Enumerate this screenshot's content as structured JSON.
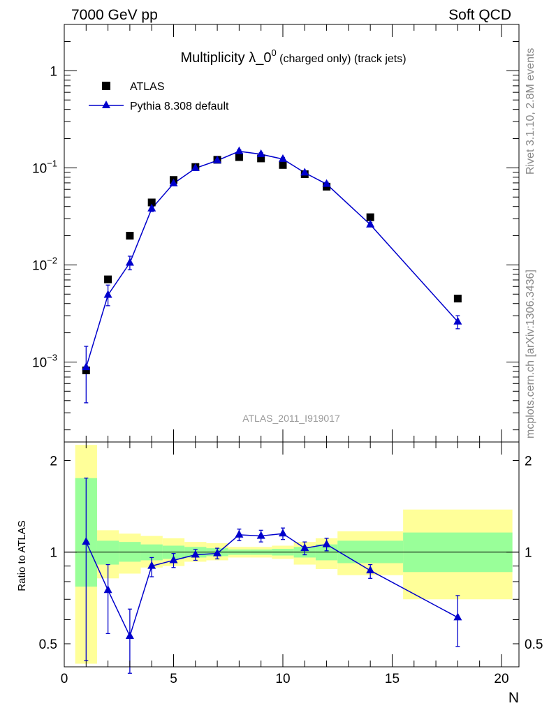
{
  "header": {
    "left": "7000 GeV pp",
    "right": "Soft QCD"
  },
  "side_labels": {
    "rivet": "Rivet 3.1.10,  2.8M events",
    "mcplots": "mcplots.cern.ch [arXiv:1306.3436]"
  },
  "watermark": "ATLAS_2011_I919017",
  "colors": {
    "mc": "#0000cc",
    "data": "#000000",
    "band_inner": "#99ff99",
    "band_outer": "#ffff99"
  },
  "chart_data": [
    {
      "type": "scatter",
      "panel": "main",
      "title": "Multiplicity λ_0⁰ (charged only) (track jets)",
      "title_main": "Multiplicity λ_0",
      "title_sup": "0",
      "title_tail": " (charged only) (track jets)",
      "xlabel": "N",
      "ylabel": "",
      "yscale": "log",
      "xlim": [
        0,
        20.8
      ],
      "ylim": [
        0.00015,
        3
      ],
      "ytick_labels": [
        {
          "value": 0.001,
          "base": "10",
          "exp": "−3"
        },
        {
          "value": 0.01,
          "base": "10",
          "exp": "−2"
        },
        {
          "value": 0.1,
          "base": "10",
          "exp": "−1"
        },
        {
          "value": 1,
          "base": "1",
          "exp": ""
        }
      ],
      "legend_position": "top-left",
      "series": [
        {
          "name": "ATLAS",
          "marker": "square",
          "x": [
            1,
            2,
            3,
            4,
            5,
            6,
            7,
            8,
            9,
            10,
            11,
            12,
            14,
            18
          ],
          "y": [
            0.00082,
            0.0071,
            0.02,
            0.044,
            0.075,
            0.102,
            0.121,
            0.129,
            0.125,
            0.107,
            0.086,
            0.064,
            0.031,
            0.0045
          ]
        },
        {
          "name": "Pythia 8.308 default",
          "marker": "triangle",
          "x": [
            1,
            2,
            3,
            4,
            5,
            6,
            7,
            8,
            9,
            10,
            11,
            12,
            14,
            18
          ],
          "y": [
            0.00088,
            0.0049,
            0.0105,
            0.038,
            0.069,
            0.099,
            0.119,
            0.148,
            0.138,
            0.123,
            0.089,
            0.068,
            0.026,
            0.0026
          ],
          "err_low": [
            0.00038,
            0.0038,
            0.0089,
            0.0355,
            0.066,
            0.096,
            0.116,
            0.143,
            0.133,
            0.118,
            0.086,
            0.065,
            0.0248,
            0.0022
          ],
          "err_high": [
            0.00145,
            0.0062,
            0.0123,
            0.0405,
            0.072,
            0.102,
            0.122,
            0.153,
            0.143,
            0.128,
            0.092,
            0.071,
            0.0272,
            0.003
          ]
        }
      ]
    },
    {
      "type": "scatter",
      "panel": "ratio",
      "xlabel": "N",
      "ylabel": "Ratio to ATLAS",
      "yscale": "log",
      "xlim": [
        0,
        20.8
      ],
      "ylim": [
        0.42,
        2.3
      ],
      "xticks": [
        0,
        5,
        10,
        15,
        20
      ],
      "yticks": [
        0.5,
        1,
        2
      ],
      "reference_line": 1,
      "bands": [
        {
          "x0": 0.5,
          "x1": 1.5,
          "inner": [
            0.77,
            1.75
          ],
          "outer": [
            0.43,
            2.25
          ]
        },
        {
          "x0": 1.5,
          "x1": 2.5,
          "inner": [
            0.91,
            1.09
          ],
          "outer": [
            0.82,
            1.18
          ]
        },
        {
          "x0": 2.5,
          "x1": 3.5,
          "inner": [
            0.93,
            1.08
          ],
          "outer": [
            0.85,
            1.15
          ]
        },
        {
          "x0": 3.5,
          "x1": 4.5,
          "inner": [
            0.94,
            1.06
          ],
          "outer": [
            0.89,
            1.13
          ]
        },
        {
          "x0": 4.5,
          "x1": 5.5,
          "inner": [
            0.95,
            1.05
          ],
          "outer": [
            0.9,
            1.11
          ]
        },
        {
          "x0": 5.5,
          "x1": 6.5,
          "inner": [
            0.96,
            1.04
          ],
          "outer": [
            0.93,
            1.08
          ]
        },
        {
          "x0": 6.5,
          "x1": 7.5,
          "inner": [
            0.97,
            1.03
          ],
          "outer": [
            0.94,
            1.07
          ]
        },
        {
          "x0": 7.5,
          "x1": 8.5,
          "inner": [
            0.98,
            1.02
          ],
          "outer": [
            0.96,
            1.04
          ]
        },
        {
          "x0": 8.5,
          "x1": 9.5,
          "inner": [
            0.98,
            1.02
          ],
          "outer": [
            0.96,
            1.04
          ]
        },
        {
          "x0": 9.5,
          "x1": 10.5,
          "inner": [
            0.975,
            1.025
          ],
          "outer": [
            0.95,
            1.05
          ]
        },
        {
          "x0": 10.5,
          "x1": 11.5,
          "inner": [
            0.96,
            1.04
          ],
          "outer": [
            0.91,
            1.08
          ]
        },
        {
          "x0": 11.5,
          "x1": 12.5,
          "inner": [
            0.94,
            1.06
          ],
          "outer": [
            0.88,
            1.11
          ]
        },
        {
          "x0": 12.5,
          "x1": 15.5,
          "inner": [
            0.92,
            1.09
          ],
          "outer": [
            0.84,
            1.17
          ]
        },
        {
          "x0": 15.5,
          "x1": 20.5,
          "inner": [
            0.86,
            1.16
          ],
          "outer": [
            0.7,
            1.38
          ]
        }
      ],
      "series": [
        {
          "name": "Pythia 8.308 default",
          "marker": "triangle",
          "x": [
            1,
            2,
            3,
            4,
            5,
            6,
            7,
            8,
            9,
            10,
            11,
            12,
            14,
            18
          ],
          "y": [
            1.08,
            0.75,
            0.53,
            0.9,
            0.94,
            0.98,
            0.99,
            1.14,
            1.13,
            1.15,
            1.03,
            1.06,
            0.87,
            0.61
          ],
          "err_low": [
            0.44,
            0.54,
            0.4,
            0.83,
            0.89,
            0.94,
            0.95,
            1.09,
            1.08,
            1.1,
            0.98,
            1.01,
            0.82,
            0.49
          ],
          "err_high": [
            1.75,
            0.91,
            0.65,
            0.96,
            0.99,
            1.02,
            1.03,
            1.19,
            1.18,
            1.2,
            1.08,
            1.11,
            0.91,
            0.72
          ]
        }
      ]
    }
  ]
}
